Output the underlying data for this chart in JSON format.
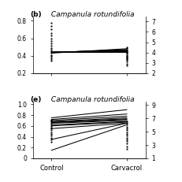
{
  "title_b": "(b) Campanula rotundifolia",
  "title_e": "(e) Campanula rotundifolia",
  "xlabel": "Control",
  "xlabel2": "Carvacrol",
  "ylim_b": [
    0.2,
    0.85
  ],
  "yticks_b": [
    0.2,
    0.4,
    0.6,
    0.8
  ],
  "ylim_e": [
    0.0,
    1.05
  ],
  "yticks_e": [
    0.0,
    0.2,
    0.4,
    0.6,
    0.8,
    1.0
  ],
  "y2lim_b": [
    2,
    7.5
  ],
  "y2ticks_b": [
    2,
    3,
    4,
    5,
    6,
    7
  ],
  "y2lim_e": [
    1,
    9.5
  ],
  "y2ticks_e": [
    1,
    3,
    5,
    7,
    9
  ],
  "solid_lines_b": [
    [
      0.43,
      0.48
    ],
    [
      0.435,
      0.47
    ],
    [
      0.44,
      0.465
    ],
    [
      0.44,
      0.46
    ],
    [
      0.44,
      0.455
    ],
    [
      0.44,
      0.45
    ],
    [
      0.44,
      0.445
    ],
    [
      0.44,
      0.442
    ],
    [
      0.44,
      0.44
    ]
  ],
  "dashed_lines_b": [
    [
      0.78,
      0.5
    ],
    [
      0.74,
      0.49
    ],
    [
      0.7,
      0.47
    ],
    [
      0.66,
      0.46
    ],
    [
      0.63,
      0.45
    ],
    [
      0.6,
      0.44
    ],
    [
      0.57,
      0.43
    ],
    [
      0.54,
      0.42
    ],
    [
      0.51,
      0.41
    ],
    [
      0.49,
      0.4
    ],
    [
      0.47,
      0.39
    ],
    [
      0.45,
      0.38
    ],
    [
      0.43,
      0.37
    ],
    [
      0.41,
      0.36
    ],
    [
      0.4,
      0.35
    ],
    [
      0.38,
      0.33
    ],
    [
      0.36,
      0.31
    ],
    [
      0.34,
      0.29
    ]
  ],
  "solid_lines_e": [
    [
      0.15,
      0.62
    ],
    [
      0.35,
      0.65
    ],
    [
      0.55,
      0.65
    ],
    [
      0.6,
      0.67
    ],
    [
      0.62,
      0.68
    ],
    [
      0.65,
      0.7
    ],
    [
      0.66,
      0.72
    ],
    [
      0.67,
      0.73
    ],
    [
      0.68,
      0.75
    ],
    [
      0.7,
      0.78
    ],
    [
      0.72,
      0.82
    ],
    [
      0.75,
      0.9
    ]
  ],
  "dashed_lines_e": [
    [
      0.72,
      0.68
    ],
    [
      0.7,
      0.65
    ],
    [
      0.68,
      0.62
    ],
    [
      0.65,
      0.58
    ],
    [
      0.62,
      0.55
    ],
    [
      0.6,
      0.52
    ],
    [
      0.57,
      0.48
    ],
    [
      0.55,
      0.45
    ],
    [
      0.52,
      0.42
    ],
    [
      0.48,
      0.38
    ],
    [
      0.45,
      0.35
    ],
    [
      0.42,
      0.32
    ],
    [
      0.38,
      0.28
    ],
    [
      0.35,
      0.22
    ],
    [
      0.3,
      0.18
    ]
  ]
}
